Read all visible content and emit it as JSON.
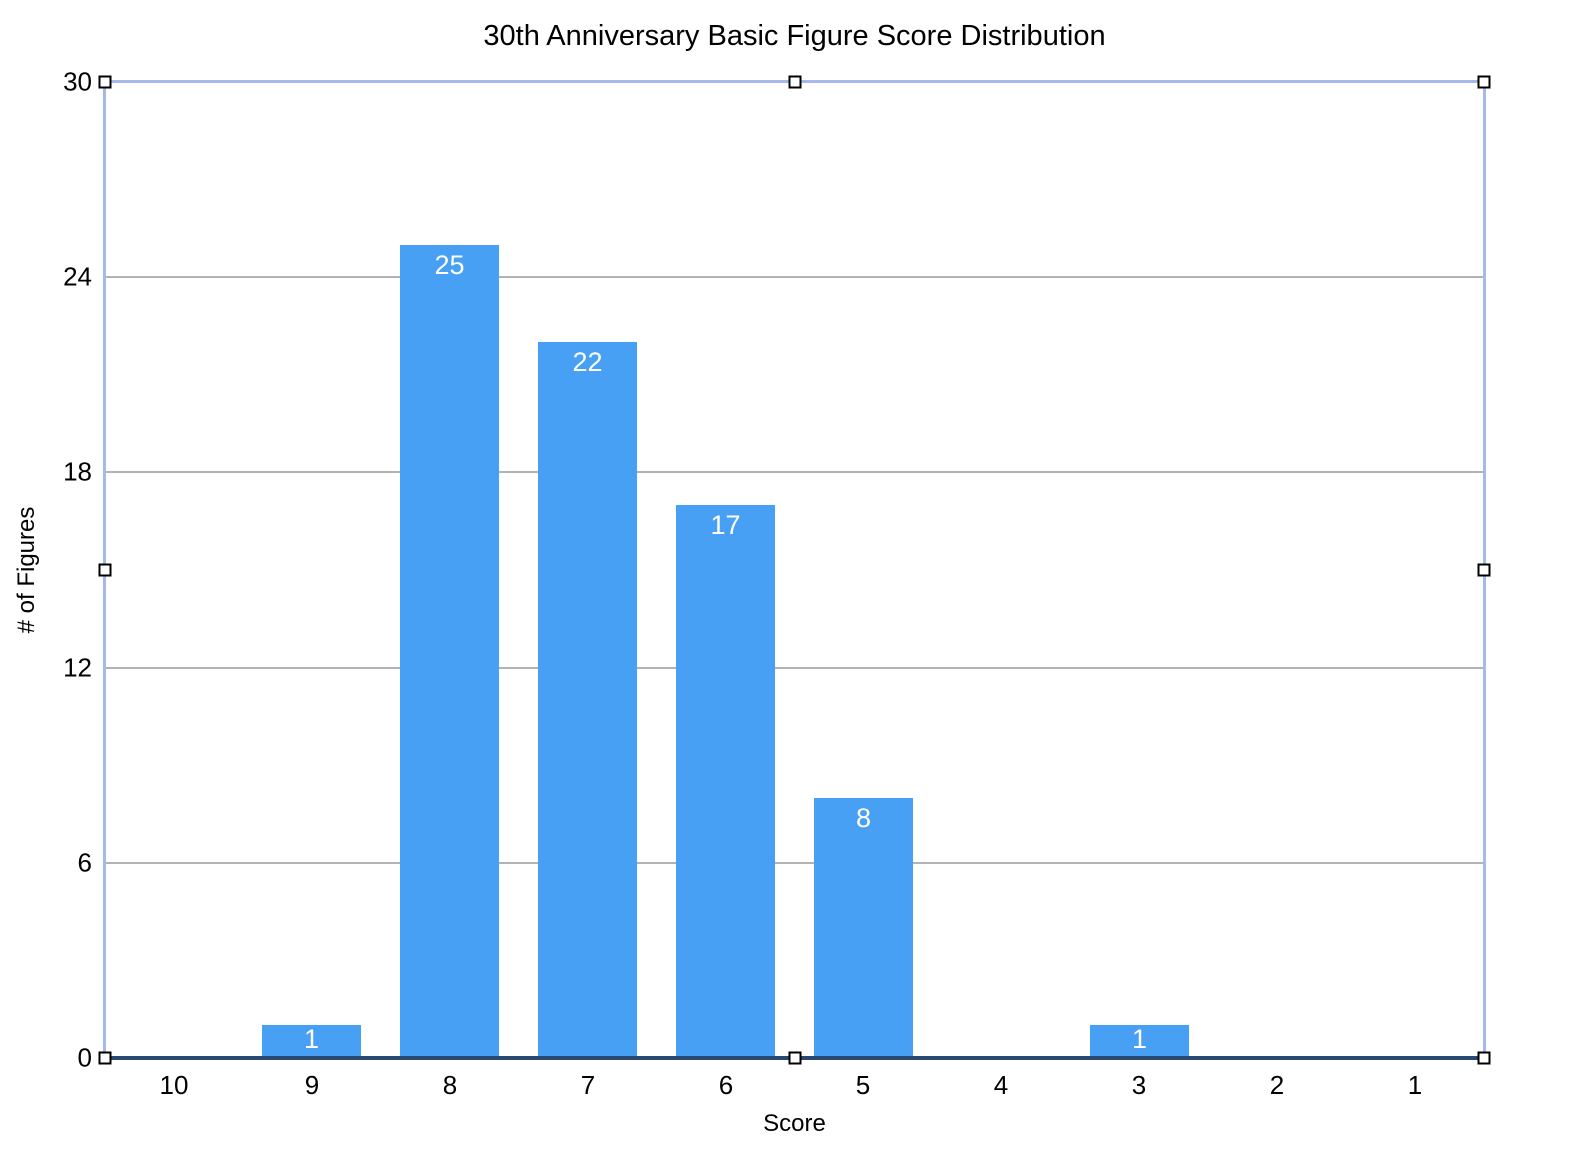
{
  "chart_data": {
    "type": "bar",
    "title": "30th Anniversary Basic Figure Score Distribution",
    "xlabel": "Score",
    "ylabel": "# of Figures",
    "categories": [
      "10",
      "9",
      "8",
      "7",
      "6",
      "5",
      "4",
      "3",
      "2",
      "1"
    ],
    "values": [
      0,
      1,
      25,
      22,
      17,
      8,
      0,
      1,
      0,
      0
    ],
    "bar_labels": [
      "",
      "1",
      "25",
      "22",
      "17",
      "8",
      "",
      "1",
      "",
      ""
    ],
    "ylim": [
      0,
      30
    ],
    "yticks": [
      0,
      6,
      12,
      18,
      24,
      30
    ],
    "grid": true,
    "legend": "none",
    "colors": {
      "bar": "#47a0f3",
      "bar_label_text": "#ffffff",
      "axis_line": "#294972",
      "gridline": "#b3b3b3",
      "selection_border": "#a6bae9",
      "text": "#000000",
      "background": "#ffffff"
    }
  },
  "selection": {
    "selected": true,
    "handle_positions": [
      "top-left",
      "top-center",
      "top-right",
      "mid-left",
      "mid-right",
      "bottom-left",
      "bottom-center",
      "bottom-right"
    ]
  }
}
